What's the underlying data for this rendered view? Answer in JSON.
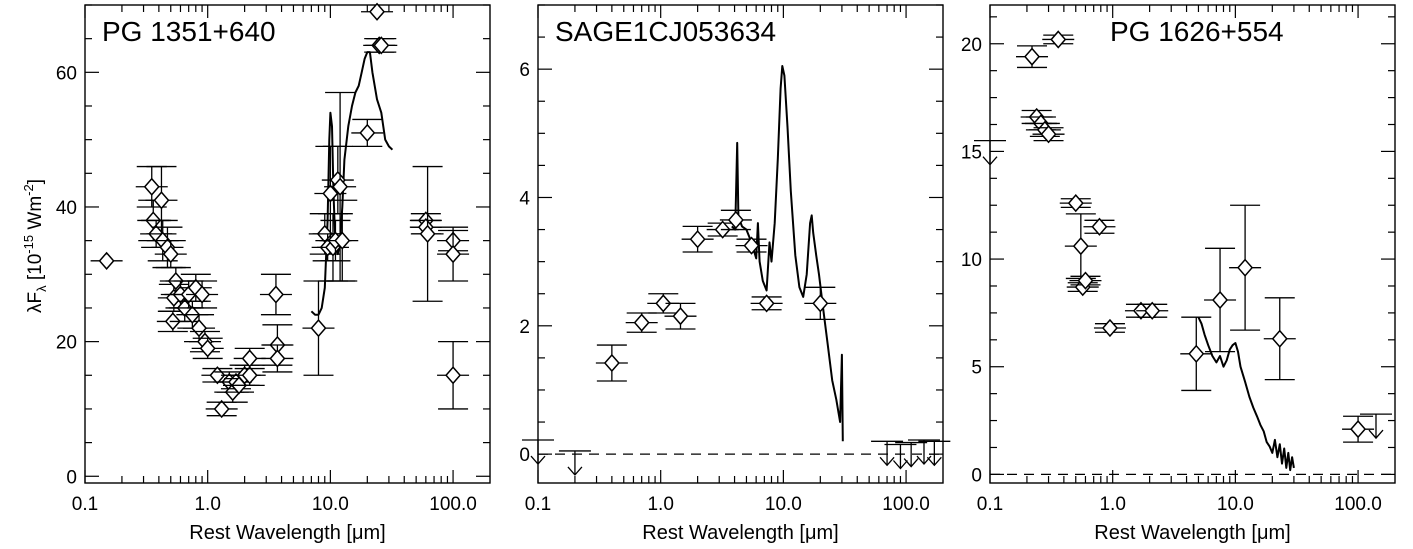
{
  "figure": {
    "xlabel": "Rest Wavelength [μm]",
    "ylabel_main": "λF",
    "ylabel_sub": "λ",
    "ylabel_unit_pre": " [10",
    "ylabel_exp1": "-15",
    "ylabel_unit_mid": " Wm",
    "ylabel_exp2": "-2",
    "ylabel_unit_post": "]"
  },
  "chart_data": [
    {
      "type": "scatter",
      "title": "PG 1351+640",
      "xlabel": "Rest Wavelength [μm]",
      "xscale": "log",
      "xlim": [
        0.1,
        200
      ],
      "ylim": [
        -1,
        70
      ],
      "xticks": [
        0.1,
        1.0,
        10.0,
        100.0
      ],
      "xtick_labels": [
        "0.1",
        "1.0",
        "10.0",
        "100.0"
      ],
      "yticks": [
        0,
        20,
        40,
        60
      ],
      "ytick_labels": [
        "0",
        "20",
        "40",
        "60"
      ],
      "zero_line": false,
      "points": [
        {
          "x": 0.15,
          "y": 32,
          "err": 0
        },
        {
          "x": 0.35,
          "y": 43,
          "err": 3
        },
        {
          "x": 0.36,
          "y": 38,
          "err": 3
        },
        {
          "x": 0.38,
          "y": 36,
          "err": 2
        },
        {
          "x": 0.42,
          "y": 41,
          "err": 5
        },
        {
          "x": 0.43,
          "y": 35,
          "err": 3
        },
        {
          "x": 0.47,
          "y": 34,
          "err": 3
        },
        {
          "x": 0.5,
          "y": 33,
          "err": 2
        },
        {
          "x": 0.52,
          "y": 23,
          "err": 1.5
        },
        {
          "x": 0.53,
          "y": 26.5,
          "err": 2
        },
        {
          "x": 0.55,
          "y": 29,
          "err": 2
        },
        {
          "x": 0.6,
          "y": 27,
          "err": 2
        },
        {
          "x": 0.65,
          "y": 25,
          "err": 2
        },
        {
          "x": 0.7,
          "y": 27,
          "err": 2
        },
        {
          "x": 0.75,
          "y": 24,
          "err": 2
        },
        {
          "x": 0.8,
          "y": 28,
          "err": 2
        },
        {
          "x": 0.85,
          "y": 22,
          "err": 2
        },
        {
          "x": 0.9,
          "y": 27,
          "err": 2
        },
        {
          "x": 0.95,
          "y": 20,
          "err": 1.5
        },
        {
          "x": 1.0,
          "y": 19,
          "err": 1.5
        },
        {
          "x": 1.2,
          "y": 15,
          "err": 1
        },
        {
          "x": 1.3,
          "y": 10,
          "err": 1
        },
        {
          "x": 1.5,
          "y": 14,
          "err": 1.5
        },
        {
          "x": 1.6,
          "y": 12.5,
          "err": 1.5
        },
        {
          "x": 1.7,
          "y": 14,
          "err": 1
        },
        {
          "x": 1.8,
          "y": 13.5,
          "err": 1
        },
        {
          "x": 2.0,
          "y": 15,
          "err": 1.5
        },
        {
          "x": 2.2,
          "y": 15,
          "err": 1.5
        },
        {
          "x": 2.2,
          "y": 17.5,
          "err": 1.5
        },
        {
          "x": 3.6,
          "y": 27,
          "err": 3
        },
        {
          "x": 3.7,
          "y": 19.5,
          "err": 3
        },
        {
          "x": 3.7,
          "y": 17.5,
          "err": 2
        },
        {
          "x": 8.0,
          "y": 22,
          "err": 7
        },
        {
          "x": 9.0,
          "y": 36,
          "err": 3
        },
        {
          "x": 9.5,
          "y": 34,
          "err": 2
        },
        {
          "x": 10.0,
          "y": 42,
          "err": 7
        },
        {
          "x": 10.5,
          "y": 34,
          "err": 5
        },
        {
          "x": 11.0,
          "y": 35,
          "err": 3
        },
        {
          "x": 11.5,
          "y": 44,
          "err": 5
        },
        {
          "x": 12.0,
          "y": 43,
          "err": 14
        },
        {
          "x": 12.5,
          "y": 35,
          "err": 6
        },
        {
          "x": 20.0,
          "y": 51,
          "err": 2
        },
        {
          "x": 24.0,
          "y": 69,
          "err": 0
        },
        {
          "x": 25.0,
          "y": 64,
          "err": 1
        },
        {
          "x": 26.0,
          "y": 64,
          "err": 1
        },
        {
          "x": 60.0,
          "y": 38,
          "err": 1
        },
        {
          "x": 60.0,
          "y": 37,
          "err": 1
        },
        {
          "x": 62.0,
          "y": 36,
          "err": 10
        },
        {
          "x": 100.0,
          "y": 35,
          "err": 1.5
        },
        {
          "x": 100.0,
          "y": 33,
          "err": 4
        },
        {
          "x": 100.0,
          "y": 15,
          "err": 5
        }
      ],
      "upper_limits": [],
      "spectrum": [
        [
          7.0,
          24.5
        ],
        [
          7.5,
          24
        ],
        [
          8.0,
          24
        ],
        [
          8.5,
          25
        ],
        [
          9.0,
          28
        ],
        [
          9.5,
          38
        ],
        [
          9.8,
          50
        ],
        [
          10.0,
          54
        ],
        [
          10.3,
          52
        ],
        [
          10.6,
          42
        ],
        [
          11.0,
          34
        ],
        [
          11.5,
          33
        ],
        [
          12.0,
          35
        ],
        [
          12.5,
          40
        ],
        [
          13.0,
          47
        ],
        [
          14.0,
          52
        ],
        [
          15.0,
          55
        ],
        [
          16.0,
          57
        ],
        [
          17.0,
          58
        ],
        [
          18.0,
          60
        ],
        [
          19.0,
          62
        ],
        [
          20.0,
          63
        ],
        [
          21.0,
          63
        ],
        [
          22.0,
          60
        ],
        [
          24.0,
          56
        ],
        [
          26.0,
          54
        ],
        [
          28.0,
          50
        ],
        [
          30.0,
          49
        ],
        [
          32.0,
          48.5
        ]
      ]
    },
    {
      "type": "scatter",
      "title": "SAGE1CJ053634",
      "xlabel": "Rest Wavelength [μm]",
      "xscale": "log",
      "xlim": [
        0.1,
        200
      ],
      "ylim": [
        -0.45,
        7.0
      ],
      "xticks": [
        0.1,
        1.0,
        10.0,
        100.0
      ],
      "xtick_labels": [
        "0.1",
        "1.0",
        "10.0",
        "100.0"
      ],
      "yticks": [
        0,
        2,
        4,
        6
      ],
      "ytick_labels": [
        "0",
        "2",
        "4",
        "6"
      ],
      "zero_line": true,
      "points": [
        {
          "x": 0.4,
          "y": 1.42,
          "err": 0.28
        },
        {
          "x": 0.7,
          "y": 2.05,
          "err": 0.15
        },
        {
          "x": 1.05,
          "y": 2.35,
          "err": 0.15
        },
        {
          "x": 1.45,
          "y": 2.15,
          "err": 0.2
        },
        {
          "x": 2.0,
          "y": 3.35,
          "err": 0.2
        },
        {
          "x": 3.2,
          "y": 3.5,
          "err": 0.1
        },
        {
          "x": 4.1,
          "y": 3.65,
          "err": 0.15
        },
        {
          "x": 5.5,
          "y": 3.25,
          "err": 0.1
        },
        {
          "x": 7.3,
          "y": 2.35,
          "err": 0.1
        },
        {
          "x": 20.0,
          "y": 2.35,
          "err": 0.25
        }
      ],
      "upper_limits": [
        {
          "x": 0.1,
          "y": 0.22
        },
        {
          "x": 0.2,
          "y": 0.05
        },
        {
          "x": 70.0,
          "y": 0.2
        },
        {
          "x": 90.0,
          "y": 0.15
        },
        {
          "x": 110.0,
          "y": 0.18
        },
        {
          "x": 140.0,
          "y": 0.22
        },
        {
          "x": 170.0,
          "y": 0.2
        }
      ],
      "spectrum": [
        [
          3.8,
          3.55
        ],
        [
          4.05,
          3.5
        ],
        [
          4.2,
          4.85
        ],
        [
          4.3,
          3.7
        ],
        [
          4.6,
          3.55
        ],
        [
          5.0,
          3.5
        ],
        [
          5.5,
          3.3
        ],
        [
          6.0,
          3.05
        ],
        [
          6.2,
          3.6
        ],
        [
          6.4,
          3.0
        ],
        [
          6.8,
          2.7
        ],
        [
          7.3,
          2.55
        ],
        [
          7.7,
          3.3
        ],
        [
          8.0,
          3.0
        ],
        [
          8.5,
          3.6
        ],
        [
          9.0,
          4.6
        ],
        [
          9.5,
          5.7
        ],
        [
          9.8,
          6.05
        ],
        [
          10.2,
          5.9
        ],
        [
          10.8,
          5.1
        ],
        [
          11.5,
          4.1
        ],
        [
          12.5,
          3.1
        ],
        [
          13.5,
          2.6
        ],
        [
          14.5,
          2.45
        ],
        [
          15.5,
          2.8
        ],
        [
          16.5,
          3.6
        ],
        [
          17.0,
          3.72
        ],
        [
          17.5,
          3.45
        ],
        [
          18.5,
          3.1
        ],
        [
          19.5,
          2.8
        ],
        [
          21.0,
          2.3
        ],
        [
          23.0,
          1.7
        ],
        [
          25.0,
          1.15
        ],
        [
          27.0,
          0.85
        ],
        [
          29.0,
          0.5
        ],
        [
          30.0,
          1.55
        ],
        [
          30.5,
          0.2
        ]
      ]
    },
    {
      "type": "scatter",
      "title": "PG 1626+554",
      "xlabel": "Rest Wavelength [μm]",
      "xscale": "log",
      "xlim": [
        0.1,
        200
      ],
      "ylim": [
        -0.4,
        21.8
      ],
      "xticks": [
        0.1,
        1.0,
        10.0,
        100.0
      ],
      "xtick_labels": [
        "0.1",
        "1.0",
        "10.0",
        "100.0"
      ],
      "yticks": [
        0,
        5,
        10,
        15,
        20
      ],
      "ytick_labels": [
        "0",
        "5",
        "10",
        "15",
        "20"
      ],
      "zero_line": true,
      "points": [
        {
          "x": 0.22,
          "y": 19.4,
          "err": 0.5
        },
        {
          "x": 0.24,
          "y": 16.6,
          "err": 0.3
        },
        {
          "x": 0.26,
          "y": 16.3,
          "err": 0.3
        },
        {
          "x": 0.28,
          "y": 16.0,
          "err": 0.3
        },
        {
          "x": 0.3,
          "y": 15.8,
          "err": 0.3
        },
        {
          "x": 0.36,
          "y": 20.2,
          "err": 0.2
        },
        {
          "x": 0.5,
          "y": 12.6,
          "err": 0.2
        },
        {
          "x": 0.55,
          "y": 10.6,
          "err": 1.5
        },
        {
          "x": 0.57,
          "y": 8.7,
          "err": 0.2
        },
        {
          "x": 0.6,
          "y": 9.0,
          "err": 0.2
        },
        {
          "x": 0.78,
          "y": 11.5,
          "err": 0.3
        },
        {
          "x": 0.95,
          "y": 6.8,
          "err": 0.2
        },
        {
          "x": 1.7,
          "y": 7.6,
          "err": 0.3
        },
        {
          "x": 2.1,
          "y": 7.6,
          "err": 0.3
        },
        {
          "x": 4.8,
          "y": 5.6,
          "err": 1.7
        },
        {
          "x": 7.5,
          "y": 8.1,
          "err": 2.4
        },
        {
          "x": 12.0,
          "y": 9.6,
          "err": 2.9
        },
        {
          "x": 23.0,
          "y": 6.3,
          "err": 1.9
        },
        {
          "x": 100.0,
          "y": 2.1,
          "err": 0.6
        }
      ],
      "upper_limits": [
        {
          "x": 0.1,
          "y": 15.5
        },
        {
          "x": 140.0,
          "y": 2.8
        }
      ],
      "spectrum": [
        [
          5.0,
          7.3
        ],
        [
          5.3,
          7.0
        ],
        [
          5.6,
          6.5
        ],
        [
          6.0,
          6.0
        ],
        [
          6.5,
          5.5
        ],
        [
          7.0,
          5.2
        ],
        [
          7.5,
          5.5
        ],
        [
          8.0,
          5.0
        ],
        [
          8.5,
          5.3
        ],
        [
          9.0,
          5.8
        ],
        [
          9.5,
          6.0
        ],
        [
          10.0,
          6.1
        ],
        [
          10.5,
          5.7
        ],
        [
          11.0,
          5.0
        ],
        [
          12.0,
          4.3
        ],
        [
          13.0,
          3.6
        ],
        [
          14.0,
          3.1
        ],
        [
          15.0,
          2.7
        ],
        [
          16.0,
          2.3
        ],
        [
          17.0,
          2.0
        ],
        [
          18.0,
          1.5
        ],
        [
          19.0,
          1.3
        ],
        [
          20.0,
          1.0
        ],
        [
          21.0,
          1.6
        ],
        [
          22.0,
          0.8
        ],
        [
          23.0,
          1.4
        ],
        [
          24.0,
          0.5
        ],
        [
          25.0,
          1.2
        ],
        [
          26.0,
          0.3
        ],
        [
          27.0,
          1.0
        ],
        [
          28.0,
          0.2
        ],
        [
          29.0,
          0.8
        ],
        [
          30.0,
          0.3
        ]
      ]
    }
  ]
}
